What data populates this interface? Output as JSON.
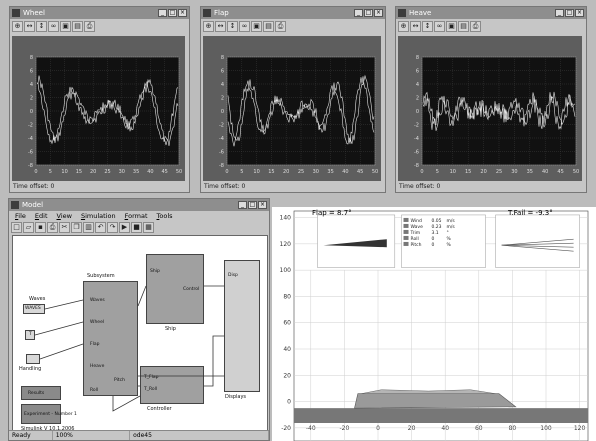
{
  "scopes": [
    {
      "title": "Wheel",
      "time_offset_label": "Time offset:",
      "time_offset_value": "0",
      "x_ticks": [
        "0",
        "5",
        "10",
        "15",
        "20",
        "25",
        "30",
        "35",
        "40",
        "45",
        "50"
      ],
      "y_ticks": [
        "8",
        "6",
        "4",
        "2",
        "0",
        "-2",
        "-4",
        "-6",
        "-8"
      ],
      "trace_color": "#e6e6e6"
    },
    {
      "title": "Flap",
      "time_offset_label": "Time offset:",
      "time_offset_value": "0",
      "x_ticks": [
        "0",
        "5",
        "10",
        "15",
        "20",
        "25",
        "30",
        "35",
        "40",
        "45",
        "50"
      ],
      "y_ticks": [
        "8",
        "6",
        "4",
        "2",
        "0",
        "-2",
        "-4",
        "-6",
        "-8"
      ],
      "trace_color": "#e6e6e6"
    },
    {
      "title": "Heave",
      "time_offset_label": "Time offset:",
      "time_offset_value": "0",
      "x_ticks": [
        "0",
        "5",
        "10",
        "15",
        "20",
        "25",
        "30",
        "35",
        "40",
        "45",
        "50"
      ],
      "y_ticks": [
        "8",
        "6",
        "4",
        "2",
        "0",
        "-2",
        "-4",
        "-6",
        "-8"
      ],
      "trace_color": "#e6e6e6"
    }
  ],
  "scope_toolbar_icons": [
    "zoom-in-icon",
    "zoom-x-icon",
    "zoom-y-icon",
    "binoculars-icon",
    "autoscale-icon",
    "save-axes-icon",
    "print-icon"
  ],
  "model": {
    "title": "Model",
    "menus": [
      "File",
      "Edit",
      "View",
      "Simulation",
      "Format",
      "Tools"
    ],
    "toolbar_icons": [
      "new-icon",
      "open-icon",
      "save-icon",
      "print-icon",
      "cut-icon",
      "copy-icon",
      "paste-icon",
      "undo-icon",
      "redo-icon",
      "play-icon",
      "stop-icon",
      "library-icon"
    ],
    "status": {
      "state": "Ready",
      "zoom": "100%",
      "solver": "ode45"
    },
    "blocks": {
      "waves": {
        "label": "Waves",
        "content": "WAVES"
      },
      "step": {
        "label": "T"
      },
      "gain": {
        "label": "Handling"
      },
      "subsystem": {
        "label": "Subsystem"
      },
      "plot_block": {
        "label": "Ship"
      },
      "controller": {
        "label": "Controller"
      },
      "display": {
        "label": "Displays"
      },
      "results": {
        "label": "Results"
      },
      "experiment": {
        "label": "Experiment  -  Number 1"
      },
      "info": {
        "label": "Simulink  V  10.1.2006"
      }
    },
    "ports": [
      "Waves",
      "Wheel",
      "Flap",
      "Heave",
      "Pitch",
      "Roll",
      "T_Flap",
      "T_Roll",
      "Ship",
      "Control",
      "Disp"
    ]
  },
  "animation": {
    "y_ticks": [
      "140",
      "120",
      "100",
      "80",
      "60",
      "40",
      "20",
      "0",
      "-20"
    ],
    "x_ticks": [
      "-40",
      "-20",
      "0",
      "20",
      "40",
      "60",
      "80",
      "100",
      "120"
    ],
    "x_range": [
      -50,
      125
    ],
    "y_range": [
      -30,
      145
    ],
    "flap_title": "Flap = 8.7°",
    "tflap_title": "T.Fail = -9.3°",
    "readouts": [
      {
        "label": "Wind",
        "value": "0.05",
        "unit": "m/s"
      },
      {
        "label": "Wave",
        "value": "0.23",
        "unit": "m/s"
      },
      {
        "label": "Trim",
        "value": "3.1",
        "unit": "°"
      },
      {
        "label": "Roll",
        "value": "0",
        "unit": "%"
      },
      {
        "label": "Pitch",
        "value": "0",
        "unit": "%"
      }
    ],
    "colors": {
      "water": "#777777",
      "hull": "#9a9a9a",
      "grid": "#cfcfcf"
    }
  }
}
